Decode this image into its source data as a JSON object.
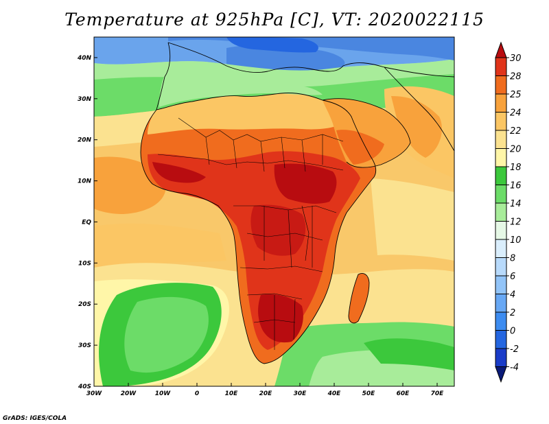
{
  "title": "Temperature at 925hPa [C], VT: 2020022115",
  "credit": "GrADS: IGES/COLA",
  "map": {
    "lon_range": [
      -30,
      75
    ],
    "lat_range": [
      -40,
      45
    ],
    "x_ticks": [
      "30W",
      "20W",
      "10W",
      "0",
      "10E",
      "20E",
      "30E",
      "40E",
      "50E",
      "60E",
      "70E"
    ],
    "y_ticks": [
      "40S",
      "30S",
      "20S",
      "10S",
      "EQ",
      "10N",
      "20N",
      "30N",
      "40N"
    ]
  },
  "colorbar": {
    "labels": [
      "-4",
      "-2",
      "0",
      "2",
      "4",
      "6",
      "8",
      "10",
      "12",
      "14",
      "16",
      "18",
      "20",
      "22",
      "24",
      "25",
      "28",
      "30"
    ],
    "colors": [
      "#0a1a78",
      "#1a3cc8",
      "#2466e0",
      "#3d8cf0",
      "#68a8f4",
      "#92c4f8",
      "#b8dafb",
      "#daeefc",
      "#e6f8e6",
      "#a8ec9a",
      "#6cdc68",
      "#3cc83c",
      "#fff6a8",
      "#fbe290",
      "#fbc664",
      "#f8a23c",
      "#f06c1e",
      "#e0341a",
      "#b80c10"
    ]
  },
  "colors": {
    "ocean_base": "#f9c86a",
    "land_hot": "#d93a16"
  }
}
